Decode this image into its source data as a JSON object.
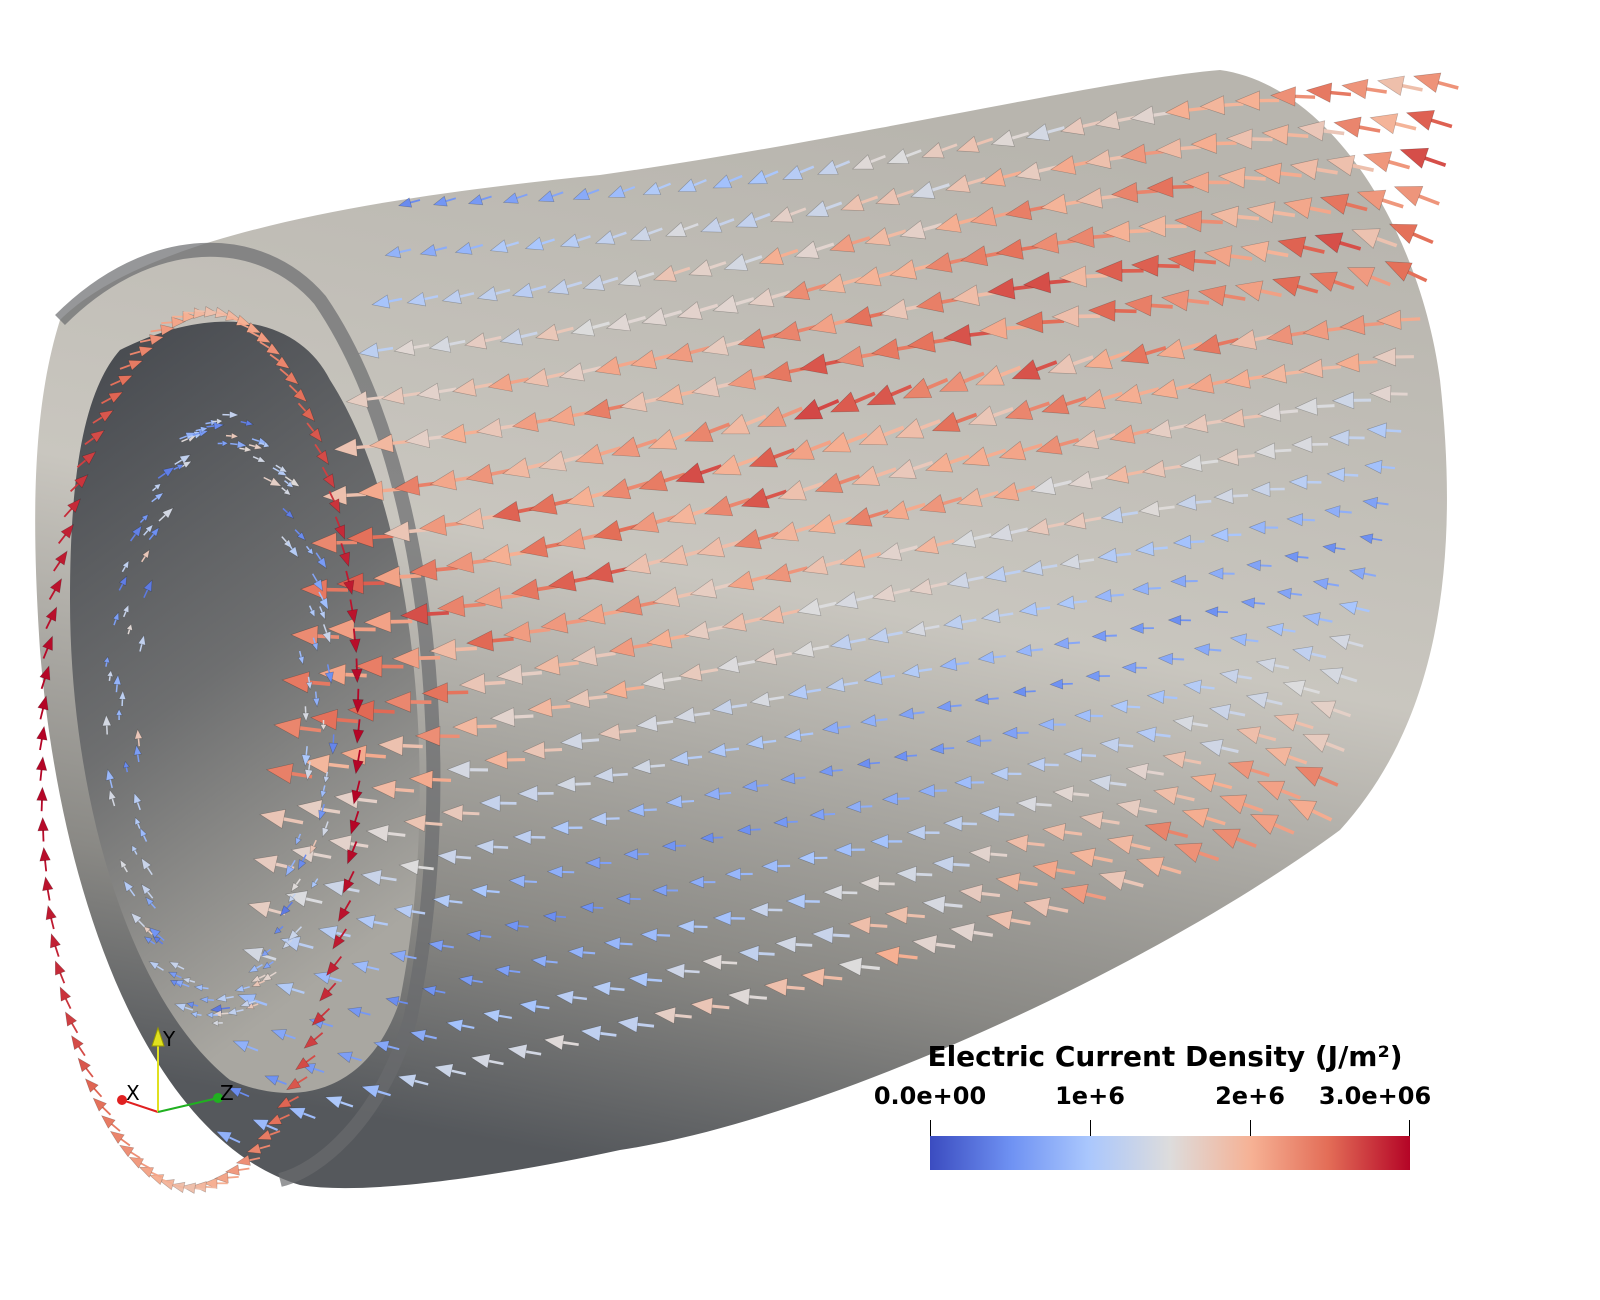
{
  "legend": {
    "title": "Electric Current Density (J/m²)",
    "range": [
      0,
      3000000
    ],
    "ticks": [
      {
        "label": "0.0e+00",
        "value": 0
      },
      {
        "label": "1e+6",
        "value": 1000000
      },
      {
        "label": "2e+6",
        "value": 2000000
      },
      {
        "label": "3.0e+06",
        "value": 3000000
      }
    ],
    "colormap": [
      "#3b4cc0",
      "#6f92f3",
      "#aac7fd",
      "#dddcdc",
      "#f6b194",
      "#e36d57",
      "#b40426"
    ]
  },
  "axes": {
    "x_label": "X",
    "y_label": "Y",
    "z_label": "Z",
    "x_color": "#e02020",
    "y_color": "#e0e020",
    "z_color": "#20b020"
  }
}
